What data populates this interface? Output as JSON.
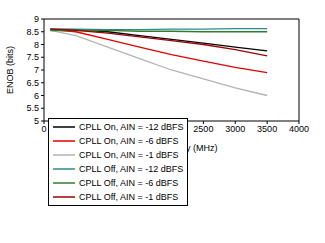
{
  "chart_data": {
    "type": "line",
    "x_label": "Input Frequency (MHz)",
    "y_label": "ENOB (bits)",
    "x": [
      100,
      500,
      1000,
      1500,
      2000,
      2500,
      3000,
      3500
    ],
    "xlim": [
      0,
      4000
    ],
    "xticks": [
      0,
      500,
      1000,
      1500,
      2000,
      2500,
      3000,
      3500,
      4000
    ],
    "ylim": [
      5,
      9
    ],
    "yticks": [
      5,
      5.5,
      6,
      6.5,
      7,
      7.5,
      8,
      8.5,
      9
    ],
    "grid": false,
    "legend": "lower left",
    "series": [
      {
        "name": "CPLL On, AIN = -12 dBFS",
        "color": "#000000",
        "values": [
          8.6,
          8.58,
          8.5,
          8.35,
          8.2,
          8.05,
          7.9,
          7.75
        ]
      },
      {
        "name": "CPLL On, AIN = -6 dBFS",
        "color": "#e00000",
        "values": [
          8.58,
          8.5,
          8.2,
          7.9,
          7.6,
          7.35,
          7.1,
          6.9
        ]
      },
      {
        "name": "CPLL On, AIN = -1 dBFS",
        "color": "#b4b4b4",
        "values": [
          8.55,
          8.35,
          7.9,
          7.45,
          7.0,
          6.65,
          6.3,
          6.0
        ]
      },
      {
        "name": "CPLL Off, AIN = -12 dBFS",
        "color": "#2e8b8b",
        "values": [
          8.6,
          8.6,
          8.58,
          8.58,
          8.6,
          8.6,
          8.62,
          8.62
        ]
      },
      {
        "name": "CPLL Off, AIN = -6 dBFS",
        "color": "#2e7d32",
        "values": [
          8.55,
          8.55,
          8.55,
          8.52,
          8.52,
          8.5,
          8.5,
          8.5
        ]
      },
      {
        "name": "CPLL Off, AIN = -1 dBFS",
        "color": "#a00000",
        "values": [
          8.6,
          8.55,
          8.45,
          8.3,
          8.15,
          8.0,
          7.8,
          7.55
        ]
      }
    ]
  }
}
